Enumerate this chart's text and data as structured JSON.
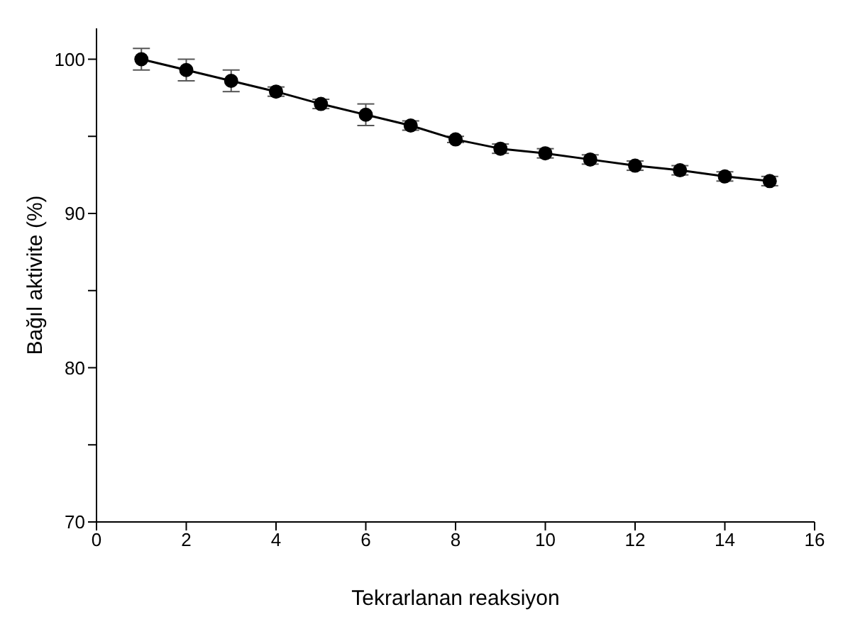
{
  "chart_data": {
    "type": "line",
    "xlabel": "Tekrarlanan reaksiyon",
    "ylabel": "Bağıl aktivite (%)",
    "x": [
      1,
      2,
      3,
      4,
      5,
      6,
      7,
      8,
      9,
      10,
      11,
      12,
      13,
      14,
      15
    ],
    "series": [
      {
        "color": "#000000",
        "values": [
          100,
          99.3,
          98.6,
          97.9,
          97.1,
          96.4,
          95.7,
          94.8,
          94.2,
          93.9,
          93.5,
          93.1,
          92.8,
          92.4,
          92.1
        ],
        "errors": [
          0.7,
          0.7,
          0.7,
          0.3,
          0.3,
          0.7,
          0.3,
          0.2,
          0.3,
          0.3,
          0.3,
          0.3,
          0.3,
          0.3,
          0.3
        ]
      }
    ],
    "xlim": [
      0,
      16
    ],
    "xticks": [
      0,
      2,
      4,
      6,
      8,
      10,
      12,
      14,
      16
    ],
    "ylim": [
      70,
      102
    ],
    "yticks": [
      70,
      {
        "value": 75,
        "label": null
      },
      80,
      {
        "value": 85,
        "label": null
      },
      90,
      {
        "value": 95,
        "label": null
      },
      100
    ],
    "marker": "circle",
    "line_style": "solid",
    "grid": false,
    "legend": false
  }
}
